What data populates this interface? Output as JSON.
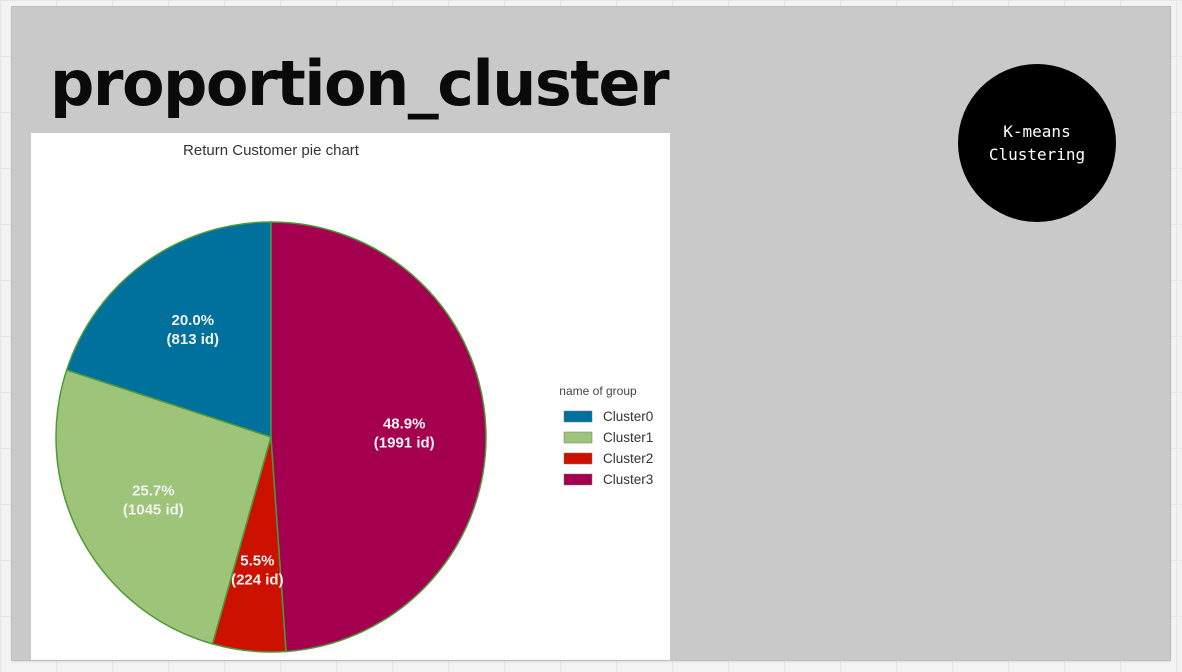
{
  "slide": {
    "title": "proportion_cluster",
    "badge": "K-means\nClustering"
  },
  "chart_data": {
    "type": "pie",
    "title": "Return Customer pie chart",
    "legend_title": "name of group",
    "legend_position": "right",
    "slices": [
      {
        "name": "Cluster0",
        "value": 813,
        "percent_label": "20.0%",
        "count_label": "(813 id)",
        "color": "#00709c"
      },
      {
        "name": "Cluster1",
        "value": 1045,
        "percent_label": "25.7%",
        "count_label": "(1045 id)",
        "color": "#9ec47a"
      },
      {
        "name": "Cluster2",
        "value": 224,
        "percent_label": "5.5%",
        "count_label": "(224 id)",
        "color": "#cc1100"
      },
      {
        "name": "Cluster3",
        "value": 1991,
        "percent_label": "48.9%",
        "count_label": "(1991 id)",
        "color": "#a4004f"
      }
    ],
    "start_angle": "12 o'clock",
    "direction": "counter-clockwise",
    "edge_color": "#4a9a3a"
  }
}
